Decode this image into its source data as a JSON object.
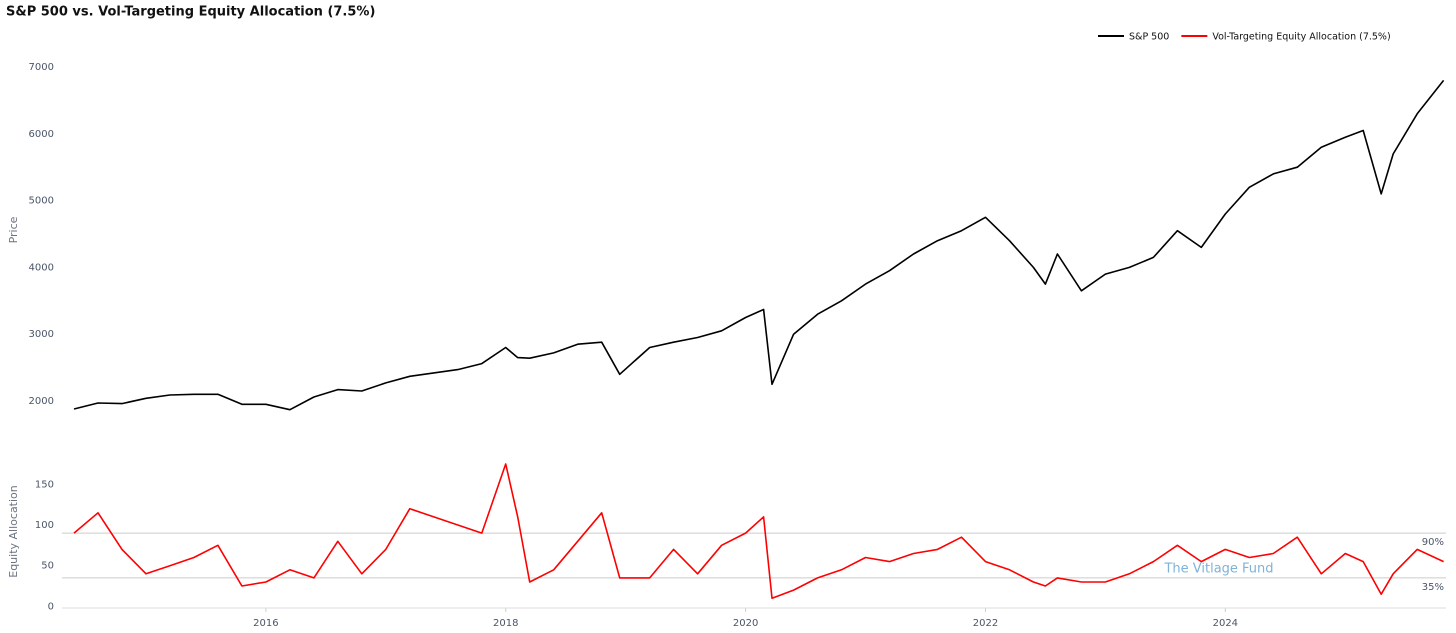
{
  "chart_data": [
    {
      "type": "line",
      "title": "S&P 500 vs. Vol-Targeting Equity Allocation (7.5%)",
      "ylabel": "Price",
      "legend": "top-right",
      "grid": false,
      "x": [
        2014.4,
        2014.6,
        2014.8,
        2015.0,
        2015.2,
        2015.4,
        2015.6,
        2015.8,
        2016.0,
        2016.2,
        2016.4,
        2016.6,
        2016.8,
        2017.0,
        2017.2,
        2017.4,
        2017.6,
        2017.8,
        2018.0,
        2018.1,
        2018.2,
        2018.4,
        2018.6,
        2018.8,
        2018.95,
        2019.2,
        2019.4,
        2019.6,
        2019.8,
        2020.0,
        2020.15,
        2020.22,
        2020.4,
        2020.6,
        2020.8,
        2021.0,
        2021.2,
        2021.4,
        2021.6,
        2021.8,
        2022.0,
        2022.2,
        2022.4,
        2022.5,
        2022.6,
        2022.8,
        2023.0,
        2023.2,
        2023.4,
        2023.6,
        2023.8,
        2024.0,
        2024.2,
        2024.4,
        2024.6,
        2024.8,
        2025.0,
        2025.15,
        2025.3,
        2025.4,
        2025.6,
        2025.82
      ],
      "series": [
        {
          "name": "S&P 500",
          "color": "#000000",
          "values": [
            1880,
            1970,
            1960,
            2040,
            2090,
            2100,
            2100,
            1950,
            1950,
            1870,
            2060,
            2170,
            2150,
            2270,
            2370,
            2420,
            2470,
            2560,
            2800,
            2650,
            2640,
            2720,
            2850,
            2880,
            2400,
            2800,
            2880,
            2950,
            3050,
            3250,
            3370,
            2250,
            3000,
            3300,
            3500,
            3750,
            3950,
            4200,
            4400,
            4550,
            4750,
            4400,
            4000,
            3750,
            4200,
            3650,
            3900,
            4000,
            4150,
            4550,
            4300,
            4800,
            5200,
            5400,
            5500,
            5800,
            5950,
            6050,
            5100,
            5700,
            6300,
            6800
          ]
        }
      ],
      "xlim": [
        2014.3,
        2025.84
      ],
      "ylim": [
        1790,
        7330
      ],
      "yticks": [
        2000,
        3000,
        4000,
        5000,
        6000,
        7000
      ]
    },
    {
      "type": "line",
      "ylabel": "Equity Allocation",
      "grid": false,
      "x": [
        2014.4,
        2014.6,
        2014.8,
        2015.0,
        2015.2,
        2015.4,
        2015.6,
        2015.8,
        2016.0,
        2016.2,
        2016.4,
        2016.6,
        2016.8,
        2017.0,
        2017.2,
        2017.4,
        2017.6,
        2017.8,
        2018.0,
        2018.1,
        2018.2,
        2018.4,
        2018.6,
        2018.8,
        2018.95,
        2019.2,
        2019.4,
        2019.6,
        2019.8,
        2020.0,
        2020.15,
        2020.22,
        2020.4,
        2020.6,
        2020.8,
        2021.0,
        2021.2,
        2021.4,
        2021.6,
        2021.8,
        2022.0,
        2022.2,
        2022.4,
        2022.5,
        2022.6,
        2022.8,
        2023.0,
        2023.2,
        2023.4,
        2023.6,
        2023.8,
        2024.0,
        2024.2,
        2024.4,
        2024.6,
        2024.8,
        2025.0,
        2025.15,
        2025.3,
        2025.4,
        2025.6,
        2025.82
      ],
      "series": [
        {
          "name": "Vol-Targeting Equity Allocation (7.5%)",
          "color": "#ff0000",
          "values": [
            90,
            115,
            70,
            40,
            50,
            60,
            75,
            25,
            30,
            45,
            35,
            80,
            40,
            70,
            120,
            110,
            100,
            90,
            175,
            110,
            30,
            45,
            80,
            115,
            35,
            35,
            70,
            40,
            75,
            90,
            110,
            10,
            20,
            35,
            45,
            60,
            55,
            65,
            70,
            85,
            55,
            45,
            30,
            25,
            35,
            30,
            30,
            40,
            55,
            75,
            55,
            70,
            60,
            65,
            85,
            40,
            65,
            55,
            15,
            40,
            70,
            55
          ]
        }
      ],
      "hlines": [
        {
          "value": 90,
          "label": "90%"
        },
        {
          "value": 35,
          "label": "35%"
        }
      ],
      "annotation": "The Vitlage Fund",
      "xlim": [
        2014.3,
        2025.84
      ],
      "ylim": [
        -2,
        186
      ],
      "yticks": [
        0,
        50,
        100,
        150
      ],
      "xticks": [
        2016,
        2018,
        2020,
        2022,
        2024
      ]
    }
  ]
}
